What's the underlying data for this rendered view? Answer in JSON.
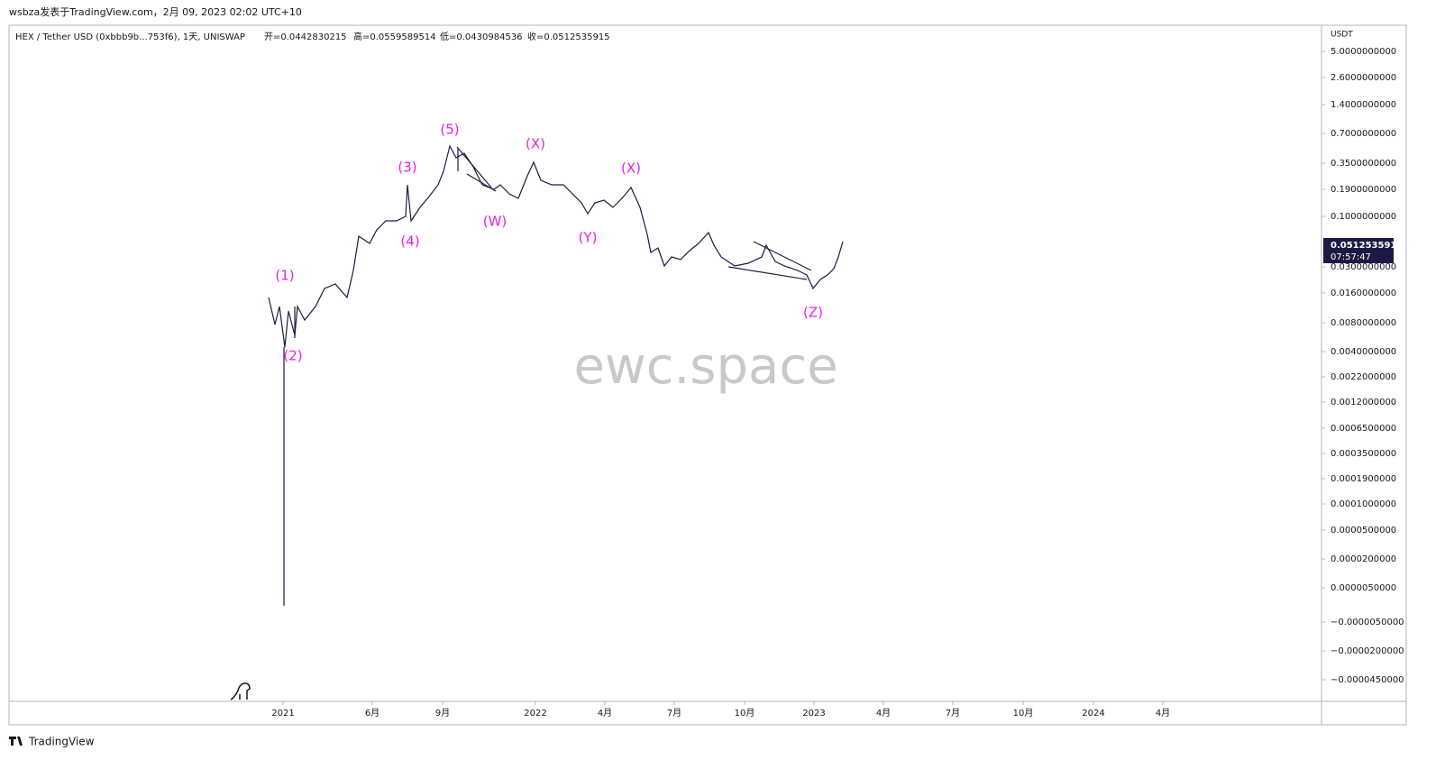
{
  "header": {
    "title": "wsbza发表于TradingView.com，2月 09, 2023 02:02 UTC+10"
  },
  "legend": {
    "symbol": "HEX / Tether USD (0xbbb9b...753f6), 1天, UNISWAP",
    "open": "开=0.0442830215",
    "high": "高=0.0559589514",
    "low": "低=0.0430984536",
    "close": "收=0.0512535915"
  },
  "price_axis": {
    "unit": "USDT",
    "labels": [
      "5.0000000000",
      "2.6000000000",
      "1.4000000000",
      "0.7000000000",
      "0.3500000000",
      "0.1900000000",
      "0.1000000000",
      "0.0300000000",
      "0.0160000000",
      "0.0080000000",
      "0.0040000000",
      "0.0022000000",
      "0.0012000000",
      "0.0006500000",
      "0.0003500000",
      "0.0001900000",
      "0.0001000000",
      "0.0000500000",
      "0.0000200000",
      "0.0000050000",
      "−0.0000050000",
      "−0.0000200000",
      "−0.0000450000"
    ],
    "badge": {
      "price": "0.0512535915",
      "countdown": "07:57:47"
    }
  },
  "time_axis": {
    "labels": [
      "2021",
      "6月",
      "9月",
      "2022",
      "4月",
      "7月",
      "10月",
      "2023",
      "4月",
      "7月",
      "10月",
      "2024",
      "4月"
    ]
  },
  "wave_labels": [
    "(1)",
    "(2)",
    "(3)",
    "(4)",
    "(5)",
    "(W)",
    "(X)",
    "(Y)",
    "(X)",
    "(Z)"
  ],
  "watermark": "ewc.space",
  "footer": {
    "brand": "TradingView"
  }
}
